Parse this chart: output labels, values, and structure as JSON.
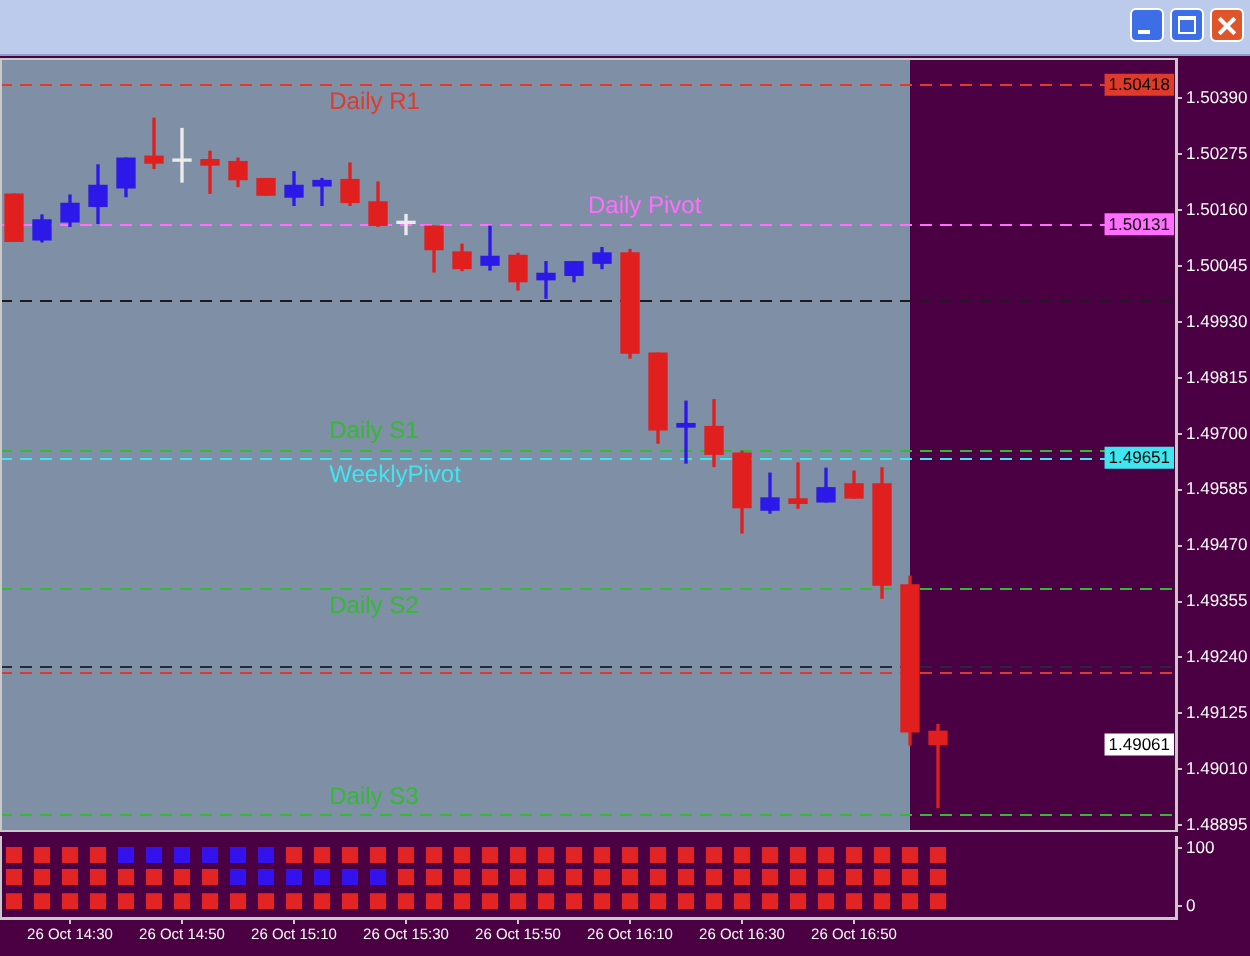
{
  "chart_data": [
    {
      "type": "candlestick",
      "categories": [
        null,
        null,
        null,
        null,
        null,
        null,
        null,
        null,
        null,
        null,
        null,
        null,
        null,
        null,
        null,
        null,
        null,
        null,
        null,
        null,
        null,
        null,
        null,
        null,
        null,
        null,
        null,
        null,
        null,
        null,
        null,
        null,
        null,
        null,
        null,
        null,
        null,
        null,
        null,
        null,
        null,
        null
      ],
      "ohlc": [
        [
          1.50193,
          1.50193,
          1.50096,
          1.50096
        ],
        [
          1.50099,
          1.5015,
          1.50095,
          1.5014
        ],
        [
          1.50136,
          1.50191,
          1.50127,
          1.50174
        ],
        [
          1.50168,
          1.50253,
          1.50133,
          1.50211
        ],
        [
          1.50206,
          1.50267,
          1.50188,
          1.50267
        ],
        [
          1.50271,
          1.50349,
          1.50246,
          1.50257
        ],
        [
          1.50261,
          1.50328,
          1.50218,
          1.50261
        ],
        [
          1.50264,
          1.50281,
          1.50195,
          1.50253
        ],
        [
          1.5026,
          1.50267,
          1.50209,
          1.50223
        ],
        [
          1.50225,
          1.50225,
          1.50191,
          1.50191
        ],
        [
          1.50187,
          1.50239,
          1.5017,
          1.50211
        ],
        [
          1.5021,
          1.50225,
          1.5017,
          1.50221
        ],
        [
          1.50223,
          1.50257,
          1.5017,
          1.50176
        ],
        [
          1.50177,
          1.50218,
          1.50127,
          1.50129
        ],
        [
          1.50133,
          1.50151,
          1.5011,
          1.50133
        ],
        [
          1.50127,
          1.50127,
          1.50033,
          1.50079
        ],
        [
          1.50074,
          1.5009,
          1.50036,
          1.5004
        ],
        [
          1.50047,
          1.50127,
          1.50037,
          1.50065
        ],
        [
          1.50067,
          1.50071,
          1.49996,
          1.50013
        ],
        [
          1.50017,
          1.50054,
          1.49979,
          1.5003
        ],
        [
          1.50026,
          1.50054,
          1.50013,
          1.50054
        ],
        [
          1.50051,
          1.50083,
          1.5004,
          1.50072
        ],
        [
          1.50072,
          1.50079,
          1.49856,
          1.49866
        ],
        [
          1.49866,
          1.49866,
          1.49681,
          1.49708
        ],
        [
          1.49714,
          1.49767,
          1.4964,
          1.49721
        ],
        [
          1.49715,
          1.4977,
          1.49633,
          1.49658
        ],
        [
          1.4966,
          1.49664,
          1.49496,
          1.49548
        ],
        [
          1.49543,
          1.49619,
          1.49537,
          1.49568
        ],
        [
          1.49566,
          1.4964,
          1.49547,
          1.49557
        ],
        [
          1.4956,
          1.49629,
          1.4956,
          1.49589
        ],
        [
          1.49597,
          1.49623,
          1.49568,
          1.49568
        ],
        [
          1.49597,
          1.4963,
          1.49362,
          1.49389
        ],
        [
          1.49389,
          1.49407,
          1.4906,
          1.49087
        ],
        [
          1.49088,
          1.49102,
          1.48931,
          1.49061
        ],
        null,
        null,
        null,
        null,
        null,
        null,
        null,
        null
      ],
      "colors": [
        "#e11f1f",
        "#2c18e8",
        "#2c18e8",
        "#2c18e8",
        "#2c18e8",
        "#e11f1f",
        "#ebebeb",
        "#e11f1f",
        "#e11f1f",
        "#e11f1f",
        "#2c18e8",
        "#2c18e8",
        "#e11f1f",
        "#e11f1f",
        "#ebebeb",
        "#e11f1f",
        "#e11f1f",
        "#2c18e8",
        "#e11f1f",
        "#2c18e8",
        "#2c18e8",
        "#2c18e8",
        "#e11f1f",
        "#e11f1f",
        "#2c18e8",
        "#e11f1f",
        "#e11f1f",
        "#2c18e8",
        "#e11f1f",
        "#2c18e8",
        "#e11f1f",
        "#e11f1f",
        "#e11f1f",
        "#e11f1f",
        null,
        null,
        null,
        null,
        null,
        null,
        null,
        null
      ],
      "ylim": [
        1.48885,
        1.50469
      ],
      "yticks": [
        1.48895,
        {
          "value": 1.4901,
          "label": "1.49010"
        },
        1.49125,
        {
          "value": 1.4924,
          "label": "1.49240"
        },
        1.49355,
        {
          "value": 1.4947,
          "label": "1.49470"
        },
        1.49585,
        {
          "value": 1.497,
          "label": "1.49700"
        },
        1.49815,
        {
          "value": 1.4993,
          "label": "1.49930"
        },
        1.50045,
        {
          "value": 1.5016,
          "label": "1.50160"
        },
        1.50275,
        {
          "value": 1.5039,
          "label": "1.50390"
        }
      ],
      "tick_labels": "y",
      "ref_lines": [
        {
          "axis": "y",
          "value": 1.50418,
          "label": "Daily R1",
          "color": "#e03a2a",
          "line_style": "dashed"
        },
        {
          "axis": "y",
          "value": 1.50131,
          "label": "Daily Pivot",
          "color": "#ff6eff",
          "line_style": "dashed"
        },
        {
          "axis": "y",
          "value": 1.49976,
          "color": "#1c1c1c",
          "line_style": "dashed"
        },
        {
          "axis": "y",
          "value": 1.49668,
          "label": "Daily S1",
          "color": "#35b835",
          "line_style": "dashed"
        },
        {
          "axis": "y",
          "value": 1.49651,
          "label": "WeeklyPivot",
          "color": "#3ee6f0",
          "line_style": "dashed"
        },
        {
          "axis": "y",
          "value": 1.49382,
          "label": "Daily S2",
          "color": "#35b835",
          "line_style": "dashed"
        },
        {
          "axis": "y",
          "value": 1.49222,
          "color": "#262a36",
          "line_style": "dashed"
        },
        {
          "axis": "y",
          "value": 1.49208,
          "color": "#d83a3a",
          "line_style": "dashed"
        },
        {
          "axis": "y",
          "value": 1.48916,
          "label": "Daily S3",
          "color": "#35b835",
          "line_style": "dashed"
        }
      ],
      "annotations": [
        {
          "text": "1.50418",
          "y": 1.50418
        },
        {
          "text": "1.50131",
          "y": 1.50131
        },
        {
          "text": "1.49651",
          "y": 1.49651
        },
        {
          "text": "1.49061",
          "y": 1.49061
        }
      ]
    },
    {
      "type": "scatter",
      "categories": [
        null,
        null,
        "26 Oct 14:30",
        null,
        null,
        null,
        "26 Oct 14:50",
        null,
        null,
        null,
        "26 Oct 15:10",
        null,
        null,
        null,
        "26 Oct 15:30",
        null,
        null,
        null,
        "26 Oct 15:50",
        null,
        null,
        null,
        "26 Oct 16:10",
        null,
        null,
        null,
        "26 Oct 16:30",
        null,
        null,
        null,
        "26 Oct 16:50",
        null,
        null,
        null,
        null,
        null,
        null,
        null,
        null,
        null,
        null,
        null
      ],
      "series": [
        {
          "values": [
            88,
            88,
            88,
            88,
            88,
            88,
            88,
            88,
            88,
            88,
            88,
            88,
            88,
            88,
            88,
            88,
            88,
            88,
            88,
            88,
            88,
            88,
            88,
            88,
            88,
            88,
            88,
            88,
            88,
            88,
            88,
            88,
            88,
            88,
            null,
            null,
            null,
            null,
            null,
            null,
            null,
            null
          ],
          "colors": [
            "#e32424",
            "#e32424",
            "#e32424",
            "#e32424",
            "#3412ee",
            "#3412ee",
            "#3412ee",
            "#3412ee",
            "#3412ee",
            "#3412ee",
            "#e32424",
            "#e32424",
            "#e32424",
            "#e32424",
            "#e32424",
            "#e32424",
            "#e32424",
            "#e32424",
            "#e32424",
            "#e32424",
            "#e32424",
            "#e32424",
            "#e32424",
            "#e32424",
            "#e32424",
            "#e32424",
            "#e32424",
            "#e32424",
            "#e32424",
            "#e32424",
            "#e32424",
            "#e32424",
            "#e32424",
            "#e32424",
            null,
            null,
            null,
            null,
            null,
            null,
            null,
            null
          ]
        },
        {
          "values": [
            50,
            50,
            50,
            50,
            50,
            50,
            50,
            50,
            50,
            50,
            50,
            50,
            50,
            50,
            50,
            50,
            50,
            50,
            50,
            50,
            50,
            50,
            50,
            50,
            50,
            50,
            50,
            50,
            50,
            50,
            50,
            50,
            50,
            50,
            null,
            null,
            null,
            null,
            null,
            null,
            null,
            null
          ],
          "colors": [
            "#e32424",
            "#e32424",
            "#e32424",
            "#e32424",
            "#e32424",
            "#e32424",
            "#e32424",
            "#e32424",
            "#3412ee",
            "#3412ee",
            "#3412ee",
            "#3412ee",
            "#3412ee",
            "#3412ee",
            "#e32424",
            "#e32424",
            "#e32424",
            "#e32424",
            "#e32424",
            "#e32424",
            "#e32424",
            "#e32424",
            "#e32424",
            "#e32424",
            "#e32424",
            "#e32424",
            "#e32424",
            "#e32424",
            "#e32424",
            "#e32424",
            "#e32424",
            "#e32424",
            "#e32424",
            "#e32424",
            null,
            null,
            null,
            null,
            null,
            null,
            null,
            null
          ]
        },
        {
          "values": [
            8,
            8,
            8,
            8,
            8,
            8,
            8,
            8,
            8,
            8,
            8,
            8,
            8,
            8,
            8,
            8,
            8,
            8,
            8,
            8,
            8,
            8,
            8,
            8,
            8,
            8,
            8,
            8,
            8,
            8,
            8,
            8,
            8,
            8,
            null,
            null,
            null,
            null,
            null,
            null,
            null,
            null
          ],
          "colors": [
            "#e32424",
            "#e32424",
            "#e32424",
            "#e32424",
            "#e32424",
            "#e32424",
            "#e32424",
            "#e32424",
            "#e32424",
            "#e32424",
            "#e32424",
            "#e32424",
            "#e32424",
            "#e32424",
            "#e32424",
            "#e32424",
            "#e32424",
            "#e32424",
            "#e32424",
            "#e32424",
            "#e32424",
            "#e32424",
            "#e32424",
            "#e32424",
            "#e32424",
            "#e32424",
            "#e32424",
            "#e32424",
            "#e32424",
            "#e32424",
            "#e32424",
            "#e32424",
            "#e32424",
            "#e32424",
            null,
            null,
            null,
            null,
            null,
            null,
            null,
            null
          ]
        }
      ],
      "ylim": [
        -21,
        121
      ],
      "yticks": [
        0,
        100
      ],
      "marker": "square"
    }
  ]
}
